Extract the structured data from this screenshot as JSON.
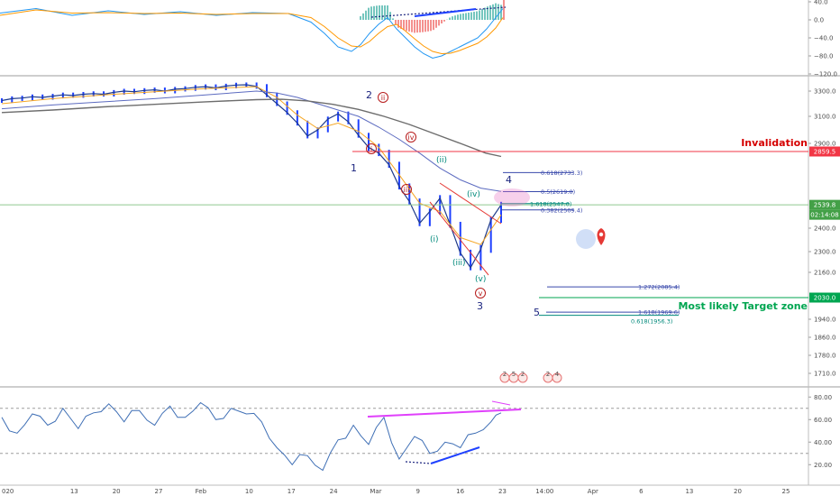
{
  "chart_data": {
    "type": "line",
    "panels": {
      "macd": {
        "y_ticks": [
          "40.0",
          "0.0",
          "−40.0",
          "−80.0",
          "−120.0"
        ],
        "y_values": [
          40,
          0,
          -40,
          -80,
          -120
        ],
        "ylim": [
          -125,
          45
        ]
      },
      "price": {
        "y_ticks": [
          "3300.0",
          "3100.0",
          "2900.0",
          "2400.0",
          "2300.0",
          "2160.0",
          "1940.0",
          "1860.0",
          "1780.0",
          "1710.0"
        ],
        "y_values": [
          3300,
          3100,
          2900,
          2400,
          2300,
          2160,
          1940,
          1860,
          1780,
          1710
        ],
        "ylim": [
          1660,
          3360
        ],
        "price_tags": [
          {
            "label": "2859.5",
            "value": 2859.5,
            "color": "#f23645"
          },
          {
            "label": "2539.8",
            "value": 2539.8,
            "color": "#43a047"
          },
          {
            "label": "02:14:08",
            "value": 2510,
            "color": "#43a047"
          },
          {
            "label": "2030.0",
            "value": 2030,
            "color": "#00a651"
          }
        ],
        "horizontal_lines": [
          {
            "name": "invalidation",
            "value": 2859.5,
            "color": "#f23645",
            "label": "Invalidation"
          },
          {
            "name": "last-price",
            "value": 2539.8,
            "color": "#8fc98f",
            "label": ""
          },
          {
            "name": "target-zone",
            "value": 2030,
            "color": "#00a651",
            "label": "Most likely Target zone"
          }
        ],
        "fib_levels": [
          {
            "label": "0.618(2733.3)",
            "value": 2733.3,
            "color": "#3949ab"
          },
          {
            "label": "0.5(2619.0)",
            "value": 2619.0,
            "color": "#3949ab"
          },
          {
            "label": "1.618(2547.0)",
            "value": 2547.0,
            "color": "#00897b"
          },
          {
            "label": "0.382(2509.4)",
            "value": 2509.4,
            "color": "#3949ab"
          },
          {
            "label": "1.272(2085.4)",
            "value": 2085.4,
            "color": "#3949ab"
          },
          {
            "label": "1.618(1969.6)",
            "value": 1969.6,
            "color": "#3949ab"
          },
          {
            "label": "0.618(1956.3)",
            "value": 1956.3,
            "color": "#00897b"
          }
        ],
        "wave_labels_major": [
          "1",
          "2",
          "3",
          "4",
          "5"
        ],
        "wave_labels_minor": [
          "(i)",
          "(ii)",
          "(iii)",
          "(iv)",
          "(v)"
        ],
        "wave_labels_sub": [
          "i",
          "ii",
          "iii",
          "iv",
          "v"
        ],
        "event_markers": [
          "2",
          "5",
          "2",
          "2",
          "4"
        ],
        "series": [
          {
            "name": "",
            "kind": "price",
            "x": [
              0,
              2,
              4,
              6,
              8,
              10,
              12,
              14,
              16,
              18,
              20,
              22,
              24,
              26,
              28,
              30,
              32,
              34,
              36,
              38,
              40,
              42,
              44,
              46,
              48,
              50,
              52,
              54,
              56,
              58,
              60,
              62,
              64,
              66,
              68,
              70,
              72,
              74,
              76,
              78,
              80,
              82,
              84,
              86,
              88,
              90,
              92,
              94,
              96,
              98
            ],
            "values": [
              3225,
              3240,
              3245,
              3255,
              3250,
              3260,
              3270,
              3265,
              3275,
              3280,
              3275,
              3290,
              3300,
              3295,
              3305,
              3310,
              3300,
              3315,
              3320,
              3330,
              3335,
              3325,
              3340,
              3348,
              3350,
              3337,
              3270,
              3200,
              3130,
              3050,
              2955,
              3000,
              3080,
              3120,
              3060,
              2960,
              2880,
              2850,
              2780,
              2650,
              2560,
              2430,
              2500,
              2580,
              2420,
              2290,
              2192,
              2310,
              2450,
              2539.8
            ]
          },
          {
            "name": "",
            "kind": "ema",
            "color": "#f5a623",
            "x": [
              0,
              10,
              20,
              30,
              40,
              50,
              54,
              58,
              62,
              66,
              70,
              74,
              78,
              82,
              86,
              90,
              94,
              98
            ],
            "values": [
              3200,
              3240,
              3270,
              3295,
              3320,
              3335,
              3250,
              3110,
              3010,
              3050,
              2990,
              2880,
              2720,
              2550,
              2500,
              2360,
              2330,
              2480
            ]
          },
          {
            "name": "",
            "kind": "sma50",
            "color": "#5c6bc0",
            "x": [
              0,
              10,
              20,
              30,
              40,
              50,
              54,
              58,
              62,
              66,
              70,
              74,
              78,
              82,
              86,
              90,
              94,
              98
            ],
            "values": [
              3160,
              3190,
              3215,
              3240,
              3270,
              3300,
              3285,
              3250,
              3200,
              3150,
              3100,
              3020,
              2930,
              2850,
              2760,
              2690,
              2640,
              2620
            ]
          },
          {
            "name": "",
            "kind": "sma200",
            "color": "#6d6d6d",
            "x": [
              0,
              10,
              20,
              30,
              40,
              50,
              55,
              60,
              65,
              70,
              75,
              80,
              85,
              90,
              95,
              98
            ],
            "values": [
              3130,
              3150,
              3175,
              3195,
              3215,
              3232,
              3235,
              3222,
              3195,
              3155,
              3100,
              3040,
              2970,
              2900,
              2850,
              2830
            ]
          }
        ]
      },
      "rsi": {
        "y_ticks": [
          "80.00",
          "60.00",
          "40.00",
          "20.00"
        ],
        "y_values": [
          80,
          60,
          40,
          20
        ],
        "ylim": [
          5,
          85
        ],
        "bands": [
          70,
          30
        ],
        "series": [
          {
            "name": "",
            "x": [
              0,
              3,
              6,
              9,
              12,
              15,
              18,
              21,
              24,
              27,
              30,
              33,
              36,
              39,
              42,
              45,
              48,
              51,
              54,
              57,
              60,
              63,
              66,
              69,
              72,
              75,
              78,
              81,
              84,
              87,
              90,
              93,
              96,
              98
            ],
            "values": [
              62,
              48,
              65,
              55,
              70,
              52,
              66,
              74,
              58,
              68,
              55,
              72,
              62,
              75,
              60,
              70,
              65,
              58,
              35,
              20,
              28,
              15,
              42,
              55,
              38,
              62,
              25,
              45,
              30,
              40,
              35,
              48,
              58,
              66
            ]
          }
        ]
      }
    },
    "x_ticks": [
      "020",
      "13",
      "20",
      "27",
      "Feb",
      "10",
      "17",
      "24",
      "Mar",
      "9",
      "16",
      "23",
      "14:00",
      "Apr",
      "6",
      "13",
      "20",
      "25"
    ],
    "x_tick_values": [
      0,
      12,
      19,
      26,
      33,
      41,
      48,
      55,
      62,
      69,
      76,
      83,
      90,
      98,
      106,
      114,
      122,
      130
    ]
  }
}
